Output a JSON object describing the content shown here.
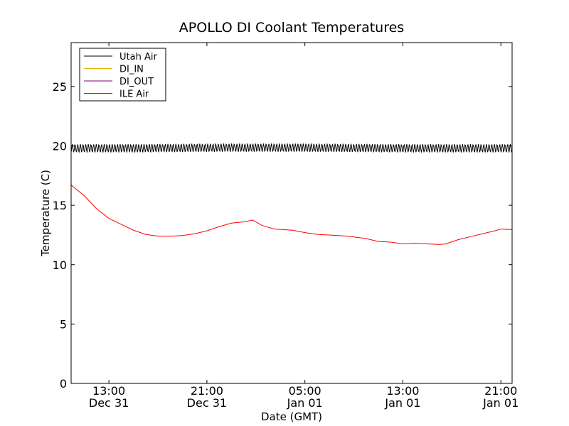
{
  "chart_data": {
    "type": "line",
    "title": "APOLLO DI Coolant Temperatures",
    "xlabel": "Date (GMT)",
    "ylabel": "Temperature (C)",
    "xlim": [
      "Dec 31 09:55",
      "Jan 01 21:55"
    ],
    "ylim": [
      0,
      28.7
    ],
    "yticks": [
      0,
      5,
      10,
      15,
      20,
      25
    ],
    "xticks": [
      {
        "time": "Dec 31 13:00",
        "line1": "13:00",
        "line2": "Dec 31"
      },
      {
        "time": "Dec 31 21:00",
        "line1": "21:00",
        "line2": "Dec 31"
      },
      {
        "time": "Jan 01 05:00",
        "line1": "05:00",
        "line2": "Jan 01"
      },
      {
        "time": "Jan 01 13:00",
        "line1": "13:00",
        "line2": "Jan 01"
      },
      {
        "time": "Jan 01 21:00",
        "line1": "21:00",
        "line2": "Jan 01"
      }
    ],
    "grid": false,
    "legend_position": "top-left",
    "series": [
      {
        "name": "Utah Air",
        "color": "#000000",
        "oscillation_amplitude": 0.35,
        "points": [
          [
            "Dec 31 09:55",
            19.8
          ],
          [
            "Dec 31 15:00",
            19.8
          ],
          [
            "Dec 31 22:00",
            19.85
          ],
          [
            "Jan 01 05:00",
            19.85
          ],
          [
            "Jan 01 13:00",
            19.8
          ],
          [
            "Jan 01 21:55",
            19.8
          ]
        ]
      },
      {
        "name": "DI_IN",
        "color": "#e8b800",
        "points": []
      },
      {
        "name": "DI_OUT",
        "color": "#800080",
        "points": []
      },
      {
        "name": "ILE Air",
        "color": "#ff0000",
        "points": [
          [
            "Dec 31 09:55",
            16.7
          ],
          [
            "Dec 31 11:00",
            15.8
          ],
          [
            "Dec 31 12:00",
            14.7
          ],
          [
            "Dec 31 13:00",
            13.9
          ],
          [
            "Dec 31 14:00",
            13.4
          ],
          [
            "Dec 31 15:00",
            12.9
          ],
          [
            "Dec 31 16:00",
            12.55
          ],
          [
            "Dec 31 17:00",
            12.4
          ],
          [
            "Dec 31 18:00",
            12.4
          ],
          [
            "Dec 31 19:00",
            12.45
          ],
          [
            "Dec 31 20:00",
            12.6
          ],
          [
            "Dec 31 21:00",
            12.85
          ],
          [
            "Dec 31 22:00",
            13.2
          ],
          [
            "Dec 31 23:00",
            13.5
          ],
          [
            "Jan 01 00:00",
            13.6
          ],
          [
            "Jan 01 00:45",
            13.75
          ],
          [
            "Jan 01 01:30",
            13.3
          ],
          [
            "Jan 01 02:30",
            13.0
          ],
          [
            "Jan 01 04:00",
            12.9
          ],
          [
            "Jan 01 05:00",
            12.7
          ],
          [
            "Jan 01 06:00",
            12.55
          ],
          [
            "Jan 01 07:00",
            12.5
          ],
          [
            "Jan 01 08:30",
            12.4
          ],
          [
            "Jan 01 10:00",
            12.2
          ],
          [
            "Jan 01 11:00",
            11.95
          ],
          [
            "Jan 01 12:00",
            11.9
          ],
          [
            "Jan 01 13:00",
            11.75
          ],
          [
            "Jan 01 14:00",
            11.8
          ],
          [
            "Jan 01 15:00",
            11.75
          ],
          [
            "Jan 01 16:00",
            11.7
          ],
          [
            "Jan 01 16:30",
            11.75
          ],
          [
            "Jan 01 17:30",
            12.1
          ],
          [
            "Jan 01 18:30",
            12.35
          ],
          [
            "Jan 01 19:30",
            12.6
          ],
          [
            "Jan 01 20:30",
            12.85
          ],
          [
            "Jan 01 21:00",
            13.0
          ],
          [
            "Jan 01 21:55",
            12.95
          ]
        ]
      }
    ]
  }
}
